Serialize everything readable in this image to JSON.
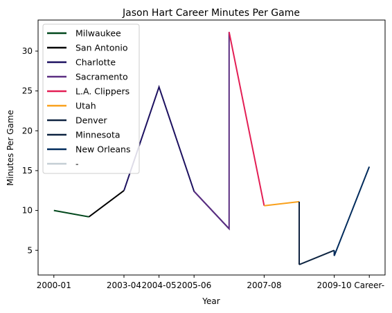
{
  "chart_data": {
    "type": "line",
    "title": "Jason Hart  Career Minutes Per Game",
    "xlabel": "Year",
    "ylabel": "Minutes Per Game",
    "x_ticks": [
      "2000-01",
      "2003-04",
      "2004-05",
      "2005-06",
      "2007-08",
      "2009-10",
      "Career-"
    ],
    "y_ticks": [
      5,
      10,
      15,
      20,
      25,
      30
    ],
    "ylim": [
      1.9,
      33.9
    ],
    "legend_position": "upper-left",
    "grid": false,
    "series": [
      {
        "name": "Milwaukee",
        "color": "#00471B",
        "x": [
          0,
          1
        ],
        "y": [
          10.0,
          9.2
        ]
      },
      {
        "name": "San Antonio",
        "color": "#000000",
        "x": [
          1,
          2
        ],
        "y": [
          9.2,
          12.5
        ]
      },
      {
        "name": "Charlotte",
        "color": "#1D1160",
        "x": [
          2,
          3,
          4,
          5
        ],
        "y": [
          12.5,
          25.5,
          12.4,
          7.7
        ]
      },
      {
        "name": "Sacramento",
        "color": "#5A2D81",
        "x": [
          4,
          5,
          5
        ],
        "y": [
          12.4,
          7.7,
          32.4
        ]
      },
      {
        "name": "L.A. Clippers",
        "color": "#E31E54",
        "x": [
          5,
          6
        ],
        "y": [
          32.4,
          10.6
        ]
      },
      {
        "name": "Utah",
        "color": "#F9A01B",
        "x": [
          6,
          7
        ],
        "y": [
          10.6,
          11.1
        ]
      },
      {
        "name": "Denver",
        "color": "#0E2240",
        "x": [
          7,
          7
        ],
        "y": [
          11.1,
          3.2
        ]
      },
      {
        "name": "Minnesota",
        "color": "#0C2340",
        "x": [
          7,
          8
        ],
        "y": [
          3.2,
          5.0
        ]
      },
      {
        "name": "New Orleans",
        "color": "#002B5C",
        "x": [
          8,
          8,
          9
        ],
        "y": [
          5.0,
          4.3,
          15.5
        ]
      },
      {
        "name": "-",
        "color": "#C4CED4",
        "x": [],
        "y": []
      }
    ],
    "x_tick_positions": [
      0,
      2,
      3,
      4,
      6,
      8,
      9
    ]
  }
}
